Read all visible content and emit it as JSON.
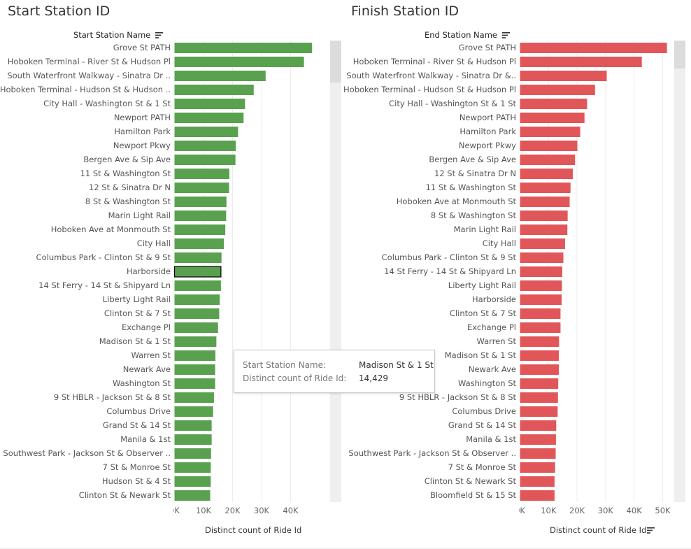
{
  "left": {
    "title": "Start Station ID",
    "dimension_header": "Start Station Name",
    "axis_title": "Distinct count of Ride Id",
    "tooltip": {
      "key1": "Start Station Name:",
      "val1": "Madison St & 1 St",
      "key2": "Distinct count of Ride Id:",
      "val2": "14,429"
    }
  },
  "right": {
    "title": "Finish Station ID",
    "dimension_header": "End Station Name",
    "axis_title": "Distinct count of Ride Id"
  },
  "colors": {
    "left_bar": "#59a14f",
    "right_bar": "#e15759",
    "highlight_outline": "#000000"
  },
  "icons": {
    "sort": "sort-descending-icon"
  },
  "chart_data": [
    {
      "type": "bar",
      "orientation": "horizontal",
      "title": "Start Station ID",
      "dimension": "Start Station Name",
      "xlabel": "Distinct count of Ride Id",
      "xlim": [
        0,
        52000
      ],
      "xticks": [
        "0K",
        "10K",
        "20K",
        "30K",
        "40K"
      ],
      "grid": true,
      "highlighted": "Harborside",
      "categories": [
        "Grove St PATH",
        "Hoboken Terminal - River St & Hudson Pl",
        "South Waterfront Walkway - Sinatra Dr ..",
        "Hoboken Terminal - Hudson St & Hudson ..",
        "City Hall - Washington St & 1 St",
        "Newport PATH",
        "Hamilton Park",
        "Newport Pkwy",
        "Bergen Ave & Sip Ave",
        "11 St & Washington St",
        "12 St & Sinatra Dr N",
        "8 St & Washington St",
        "Marin Light Rail",
        "Hoboken Ave at Monmouth St",
        "City Hall",
        "Columbus Park - Clinton St & 9 St",
        "Harborside",
        "14 St Ferry - 14 St & Shipyard Ln",
        "Liberty Light Rail",
        "Clinton St & 7 St",
        "Exchange Pl",
        "Madison St & 1 St",
        "Warren St",
        "Newark Ave",
        "Washington St",
        "9 St HBLR - Jackson St & 8 St",
        "Columbus Drive",
        "Grand St & 14 St",
        "Manila & 1st",
        "Southwest Park - Jackson St & Observer ..",
        "7 St & Monroe St",
        "Hudson St & 4 St",
        "Clinton St & Newark St"
      ],
      "values": [
        47400,
        44600,
        31400,
        27300,
        24300,
        23800,
        21900,
        21100,
        21000,
        18900,
        18800,
        17900,
        17800,
        17500,
        17000,
        16200,
        16000,
        16000,
        15600,
        15400,
        15000,
        14429,
        14100,
        14000,
        14000,
        13600,
        13300,
        12800,
        12800,
        12600,
        12500,
        12500,
        12300
      ]
    },
    {
      "type": "bar",
      "orientation": "horizontal",
      "title": "Finish Station ID",
      "dimension": "End Station Name",
      "xlabel": "Distinct count of Ride Id",
      "xlim": [
        0,
        55000
      ],
      "xticks": [
        "0K",
        "10K",
        "20K",
        "30K",
        "40K",
        "50K"
      ],
      "grid": true,
      "categories": [
        "Grove St PATH",
        "Hoboken Terminal - River St & Hudson Pl",
        "South Waterfront Walkway - Sinatra Dr &..",
        "Hoboken Terminal - Hudson St & Hudson Pl",
        "City Hall - Washington St & 1 St",
        "Newport PATH",
        "Hamilton Park",
        "Newport Pkwy",
        "Bergen Ave & Sip Ave",
        "12 St & Sinatra Dr N",
        "11 St & Washington St",
        "Hoboken Ave at Monmouth St",
        "8 St & Washington St",
        "Marin Light Rail",
        "City Hall",
        "Columbus Park - Clinton St & 9 St",
        "14 St Ferry - 14 St & Shipyard Ln",
        "Liberty Light Rail",
        "Harborside",
        "Clinton St & 7 St",
        "Exchange Pl",
        "Warren St",
        "Madison St & 1 St",
        "Newark Ave",
        "Washington St",
        "9 St HBLR - Jackson St & 8 St",
        "Columbus Drive",
        "Grand St & 14 St",
        "Manila & 1st",
        "Southwest Park - Jackson St & Observer ..",
        "7 St & Monroe St",
        "Clinton St & Newark St",
        "Bloomfield St & 15 St"
      ],
      "values": [
        51500,
        42700,
        30400,
        26300,
        23500,
        22600,
        21100,
        20100,
        19300,
        18500,
        17700,
        17400,
        16700,
        16600,
        15800,
        15200,
        14800,
        14700,
        14600,
        14200,
        14200,
        13700,
        13600,
        13600,
        13400,
        13300,
        13200,
        12700,
        12600,
        12500,
        12300,
        12100,
        12100
      ]
    }
  ]
}
